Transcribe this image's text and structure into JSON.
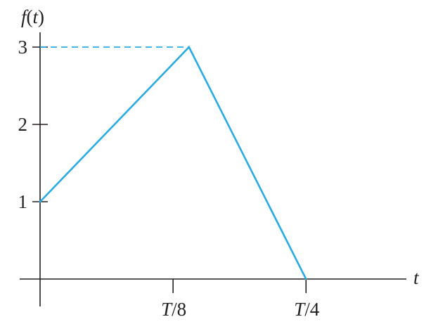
{
  "chart_data": {
    "type": "line",
    "ylabel": "f(t)",
    "xlabel": "t",
    "x_ticks": [
      {
        "value": 0.125,
        "label": "T/8"
      },
      {
        "value": 0.25,
        "label": "T/4"
      }
    ],
    "y_ticks": [
      {
        "value": 1,
        "label": "1"
      },
      {
        "value": 2,
        "label": "2"
      },
      {
        "value": 3,
        "label": "3"
      }
    ],
    "x_unit": "T",
    "xlim": [
      0,
      0.35
    ],
    "ylim": [
      -0.3,
      3.5
    ],
    "grid": false,
    "series": [
      {
        "color": "#29abe2",
        "points": [
          {
            "x": 0,
            "y": 1
          },
          {
            "x": 0.14,
            "y": 3
          },
          {
            "x": 0.25,
            "y": 0
          }
        ]
      }
    ],
    "guides": [
      {
        "kind": "horizontal-dashed",
        "y": 3,
        "x_from": 0,
        "x_to": 0.14,
        "color": "#29abe2"
      }
    ]
  }
}
